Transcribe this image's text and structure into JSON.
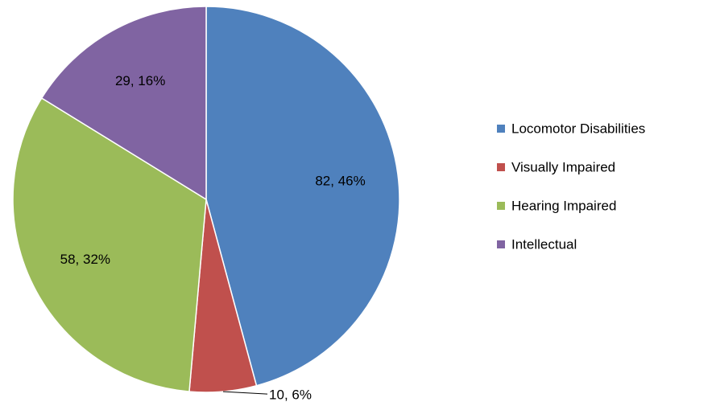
{
  "chart_data": {
    "type": "pie",
    "categories": [
      "Locomotor Disabilities",
      "Visually Impaired",
      "Hearing Impaired",
      "Intellectual"
    ],
    "values": [
      82,
      10,
      58,
      29
    ],
    "value_labels": [
      "82, 46%",
      "10, 6%",
      "58, 32%",
      "29, 16%"
    ],
    "colors": [
      "#4f81bd",
      "#c0504d",
      "#9bbb59",
      "#8064a2"
    ],
    "legend": "right"
  }
}
